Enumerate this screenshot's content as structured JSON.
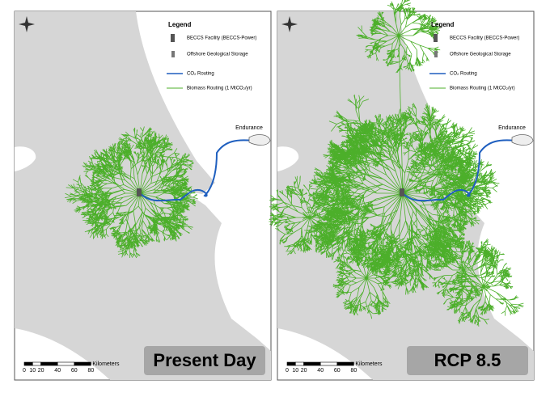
{
  "legend": {
    "title": "Legend",
    "items": [
      "BECCS Facility (BECCS-Power)",
      "Offshore Geological Storage",
      "CO₂ Routing",
      "Biomass Routing (1 MtCO₂/yr)"
    ]
  },
  "storage_label": "Endurance",
  "scale": {
    "unit": "Kilometers",
    "ticks": [
      0,
      10,
      20,
      40,
      60,
      80
    ]
  },
  "panels": [
    {
      "label": "Present Day"
    },
    {
      "label": "RCP 8.5"
    }
  ]
}
